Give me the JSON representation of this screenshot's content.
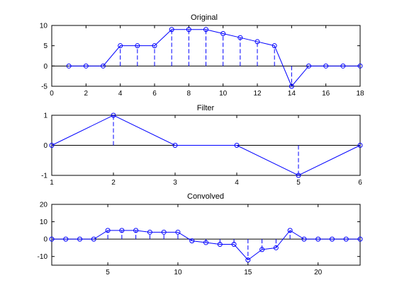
{
  "chart_data": [
    {
      "type": "line",
      "title": "Original",
      "xlabel": "",
      "ylabel": "",
      "xlim": [
        0,
        18
      ],
      "ylim": [
        -5,
        10
      ],
      "xticks": [
        0,
        2,
        4,
        6,
        8,
        10,
        12,
        14,
        16,
        18
      ],
      "yticks": [
        -5,
        0,
        5,
        10
      ],
      "grid": false,
      "x": [
        1,
        2,
        3,
        4,
        5,
        6,
        7,
        8,
        9,
        10,
        11,
        12,
        13,
        14,
        15,
        16,
        17,
        18
      ],
      "values": [
        0,
        0,
        0,
        5,
        5,
        5,
        9,
        9,
        9,
        8,
        7,
        6,
        5,
        -5,
        0,
        0,
        0,
        0
      ],
      "marker": "circle",
      "stems": "dashed",
      "color": "#0000ff"
    },
    {
      "type": "line",
      "title": "Filter",
      "xlabel": "",
      "ylabel": "",
      "xlim": [
        1,
        6
      ],
      "ylim": [
        -1,
        1
      ],
      "xticks": [
        1,
        2,
        3,
        4,
        5,
        6
      ],
      "yticks": [
        -1,
        0,
        1
      ],
      "grid": false,
      "x": [
        1,
        2,
        3,
        4,
        5,
        6
      ],
      "values": [
        0,
        1,
        0,
        0,
        -1,
        0
      ],
      "marker": "circle",
      "stems": "dashed",
      "color": "#0000ff"
    },
    {
      "type": "line",
      "title": "Convolved",
      "xlabel": "",
      "ylabel": "",
      "xlim": [
        1,
        23
      ],
      "ylim": [
        -15,
        20
      ],
      "xticks": [
        5,
        10,
        15,
        20
      ],
      "yticks": [
        -10,
        0,
        10,
        20
      ],
      "grid": false,
      "x": [
        1,
        2,
        3,
        4,
        5,
        6,
        7,
        8,
        9,
        10,
        11,
        12,
        13,
        14,
        15,
        16,
        17,
        18,
        19,
        20,
        21,
        22,
        23
      ],
      "values": [
        0,
        0,
        0,
        0,
        5,
        5,
        5,
        4,
        4,
        4,
        -1,
        -2,
        -3,
        -3,
        -12,
        -6,
        -5,
        5,
        0,
        0,
        0,
        0,
        0
      ],
      "marker": "circle",
      "stems": "dashed",
      "color": "#0000ff"
    }
  ]
}
